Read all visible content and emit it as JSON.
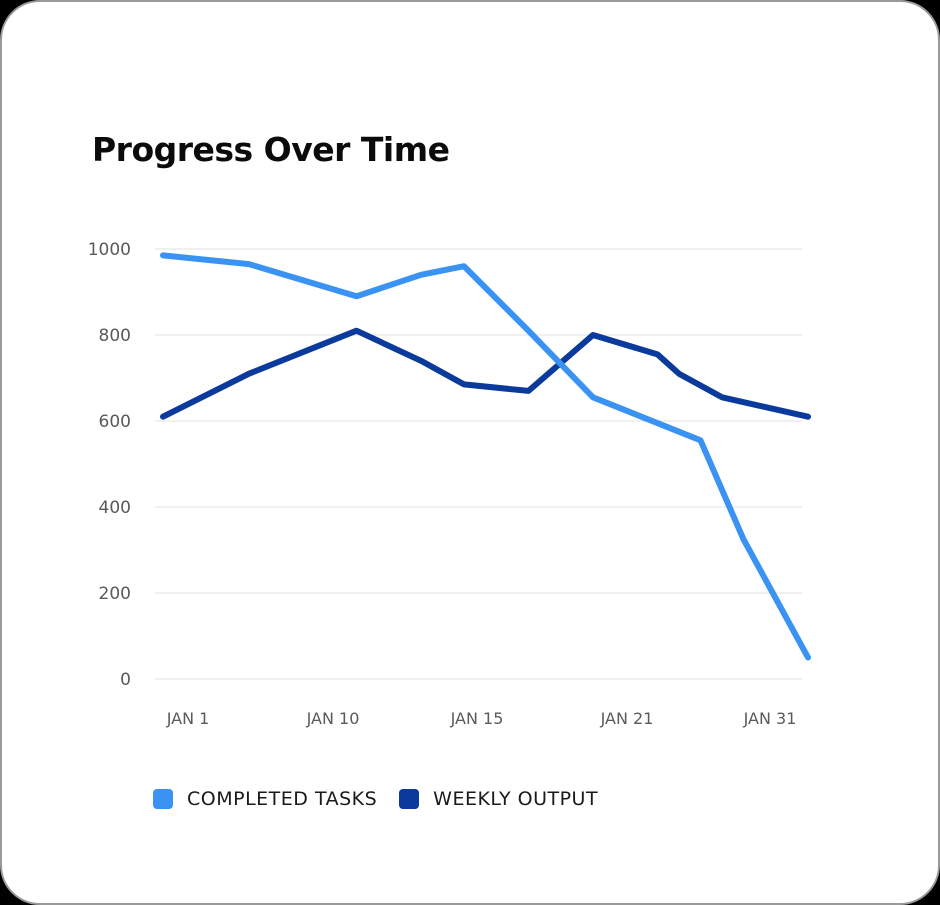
{
  "title": "Progress Over Time",
  "colors": {
    "completed_tasks": "#3a93f2",
    "weekly_output": "#0a3a9c",
    "grid": "#e6e6e6",
    "tick_text": "#5a5a5a"
  },
  "legend": [
    {
      "label": "COMPLETED TASKS",
      "color": "#3a93f2"
    },
    {
      "label": "WEEKLY OUTPUT",
      "color": "#0a3a9c"
    }
  ],
  "y_ticks": [
    "1000",
    "800",
    "600",
    "400",
    "200",
    "0"
  ],
  "x_ticks": [
    "JAN 1",
    "JAN 10",
    "JAN 15",
    "JAN 21",
    "JAN 31"
  ],
  "chart_data": {
    "type": "line",
    "title": "Progress Over Time",
    "xlabel": "",
    "ylabel": "",
    "ylim": [
      0,
      1000
    ],
    "grid": true,
    "legend_position": "bottom",
    "x_tick_labels": [
      "JAN 1",
      "JAN 10",
      "JAN 15",
      "JAN 21",
      "JAN 31"
    ],
    "y_tick_labels": [
      0,
      200,
      400,
      600,
      800,
      1000
    ],
    "series": [
      {
        "name": "COMPLETED TASKS",
        "color": "#3a93f2",
        "x": [
          "Jan 1",
          "Jan 5",
          "Jan 10",
          "Jan 13",
          "Jan 15",
          "Jan 18",
          "Jan 21",
          "Jan 26",
          "Jan 28",
          "Jan 31"
        ],
        "values": [
          985,
          965,
          890,
          940,
          960,
          810,
          655,
          555,
          325,
          50
        ]
      },
      {
        "name": "WEEKLY OUTPUT",
        "color": "#0a3a9c",
        "x": [
          "Jan 1",
          "Jan 5",
          "Jan 10",
          "Jan 13",
          "Jan 15",
          "Jan 18",
          "Jan 21",
          "Jan 24",
          "Jan 25",
          "Jan 27",
          "Jan 31"
        ],
        "values": [
          610,
          710,
          810,
          740,
          685,
          670,
          800,
          755,
          710,
          655,
          610
        ]
      }
    ]
  }
}
